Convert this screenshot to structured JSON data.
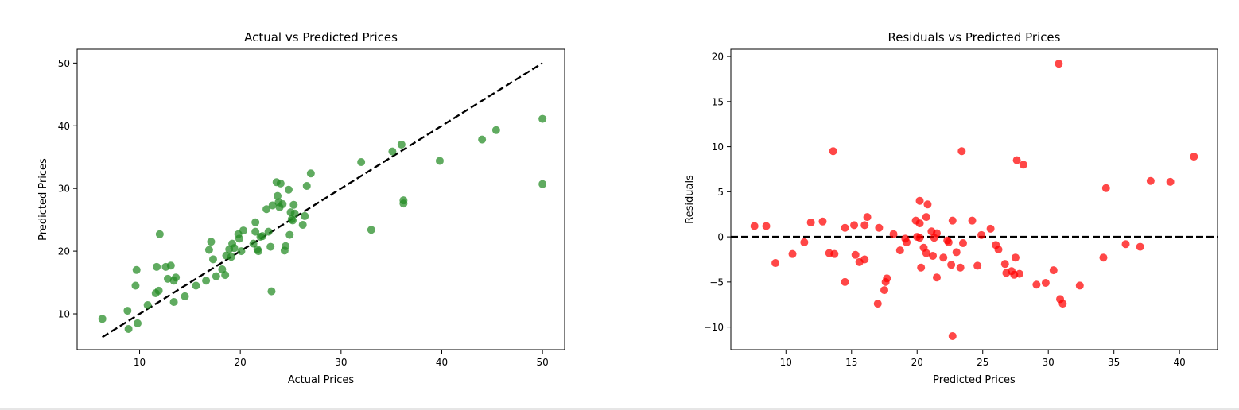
{
  "chart_data": [
    {
      "type": "scatter",
      "title": "Actual vs Predicted Prices",
      "xlabel": "Actual Prices",
      "ylabel": "Predicted Prices",
      "xlim": [
        3.8,
        52.2
      ],
      "ylim": [
        4.3,
        52.2
      ],
      "xticks": [
        10,
        20,
        30,
        40,
        50
      ],
      "yticks": [
        10,
        20,
        30,
        40,
        50
      ],
      "point_color": "#228b22",
      "grid": false,
      "reference_line": {
        "style": "dashed",
        "color": "#000000",
        "from": [
          6.3,
          6.3
        ],
        "to": [
          50,
          50
        ]
      },
      "points": [
        [
          6.3,
          9.2
        ],
        [
          8.8,
          10.5
        ],
        [
          8.9,
          7.6
        ],
        [
          9.6,
          14.5
        ],
        [
          9.7,
          17.0
        ],
        [
          9.8,
          8.5
        ],
        [
          10.8,
          11.4
        ],
        [
          11.6,
          13.3
        ],
        [
          11.7,
          17.5
        ],
        [
          11.9,
          13.7
        ],
        [
          12.0,
          22.7
        ],
        [
          12.6,
          17.5
        ],
        [
          12.8,
          15.6
        ],
        [
          13.1,
          17.7
        ],
        [
          13.4,
          11.9
        ],
        [
          13.4,
          15.3
        ],
        [
          13.6,
          15.8
        ],
        [
          14.5,
          12.8
        ],
        [
          15.6,
          14.5
        ],
        [
          16.6,
          15.3
        ],
        [
          16.9,
          20.2
        ],
        [
          17.1,
          21.5
        ],
        [
          17.3,
          18.7
        ],
        [
          17.6,
          16.0
        ],
        [
          18.2,
          17.1
        ],
        [
          18.5,
          16.2
        ],
        [
          18.6,
          19.3
        ],
        [
          18.9,
          20.3
        ],
        [
          19.2,
          21.2
        ],
        [
          19.1,
          19.1
        ],
        [
          19.4,
          20.5
        ],
        [
          19.8,
          22.7
        ],
        [
          19.9,
          22.0
        ],
        [
          20.1,
          20.0
        ],
        [
          20.3,
          23.3
        ],
        [
          21.3,
          21.2
        ],
        [
          21.5,
          24.6
        ],
        [
          21.5,
          23.1
        ],
        [
          21.7,
          20.3
        ],
        [
          21.8,
          20.0
        ],
        [
          22.0,
          22.3
        ],
        [
          22.2,
          22.4
        ],
        [
          22.6,
          26.7
        ],
        [
          22.8,
          23.1
        ],
        [
          23.0,
          20.7
        ],
        [
          23.1,
          13.6
        ],
        [
          23.2,
          27.3
        ],
        [
          23.6,
          31.0
        ],
        [
          23.7,
          28.8
        ],
        [
          23.8,
          27.8
        ],
        [
          23.9,
          27.0
        ],
        [
          24.0,
          30.8
        ],
        [
          24.2,
          27.5
        ],
        [
          24.4,
          20.1
        ],
        [
          24.5,
          20.8
        ],
        [
          24.8,
          29.8
        ],
        [
          24.9,
          22.6
        ],
        [
          25.0,
          26.2
        ],
        [
          25.1,
          25.1
        ],
        [
          25.2,
          24.9
        ],
        [
          25.3,
          27.4
        ],
        [
          25.4,
          26.0
        ],
        [
          26.2,
          24.2
        ],
        [
          26.4,
          25.6
        ],
        [
          26.6,
          30.4
        ],
        [
          27.0,
          32.4
        ],
        [
          32.0,
          34.2
        ],
        [
          33.0,
          23.4
        ],
        [
          35.1,
          35.9
        ],
        [
          36.0,
          37.0
        ],
        [
          36.2,
          27.6
        ],
        [
          36.2,
          28.1
        ],
        [
          39.8,
          34.4
        ],
        [
          44.0,
          37.8
        ],
        [
          45.4,
          39.3
        ],
        [
          50.0,
          41.1
        ],
        [
          50.0,
          30.7
        ]
      ]
    },
    {
      "type": "scatter",
      "title": "Residuals vs Predicted Prices",
      "xlabel": "Predicted Prices",
      "ylabel": "Residuals",
      "xlim": [
        5.8,
        42.9
      ],
      "ylim": [
        -12.5,
        20.8
      ],
      "xticks": [
        10,
        15,
        20,
        25,
        30,
        35,
        40
      ],
      "yticks": [
        -10,
        -5,
        0,
        5,
        10,
        15,
        20
      ],
      "point_color": "#ff0000",
      "grid": false,
      "reference_line": {
        "style": "dashed",
        "color": "#000000",
        "y": 0
      },
      "points": [
        [
          7.6,
          1.2
        ],
        [
          8.5,
          1.2
        ],
        [
          9.2,
          -2.9
        ],
        [
          10.5,
          -1.9
        ],
        [
          11.4,
          -0.6
        ],
        [
          11.9,
          1.6
        ],
        [
          12.8,
          1.7
        ],
        [
          13.3,
          -1.8
        ],
        [
          13.6,
          9.5
        ],
        [
          13.7,
          -1.9
        ],
        [
          14.5,
          -5.0
        ],
        [
          14.5,
          1.0
        ],
        [
          15.2,
          1.3
        ],
        [
          15.3,
          -2.0
        ],
        [
          15.6,
          -2.8
        ],
        [
          16.0,
          1.3
        ],
        [
          16.0,
          -2.5
        ],
        [
          16.2,
          2.2
        ],
        [
          17.0,
          -7.4
        ],
        [
          17.1,
          1.0
        ],
        [
          17.5,
          -5.9
        ],
        [
          17.6,
          -5.0
        ],
        [
          17.7,
          -4.6
        ],
        [
          18.2,
          0.3
        ],
        [
          18.7,
          -1.5
        ],
        [
          19.1,
          -0.2
        ],
        [
          19.2,
          -0.6
        ],
        [
          19.9,
          1.8
        ],
        [
          20.0,
          0.0
        ],
        [
          20.2,
          -0.1
        ],
        [
          20.2,
          1.5
        ],
        [
          20.2,
          4.0
        ],
        [
          20.3,
          -3.4
        ],
        [
          20.5,
          -1.2
        ],
        [
          20.7,
          -1.8
        ],
        [
          20.7,
          2.2
        ],
        [
          20.8,
          3.6
        ],
        [
          21.1,
          0.6
        ],
        [
          21.2,
          -2.1
        ],
        [
          21.3,
          -0.1
        ],
        [
          21.5,
          -4.5
        ],
        [
          21.5,
          0.4
        ],
        [
          22.0,
          -2.3
        ],
        [
          22.3,
          -0.4
        ],
        [
          22.4,
          -0.6
        ],
        [
          22.6,
          -3.1
        ],
        [
          22.7,
          -11.0
        ],
        [
          22.7,
          1.8
        ],
        [
          23.0,
          -1.7
        ],
        [
          23.3,
          -3.4
        ],
        [
          23.4,
          9.5
        ],
        [
          23.5,
          -0.7
        ],
        [
          24.2,
          1.8
        ],
        [
          24.6,
          -3.2
        ],
        [
          24.9,
          0.2
        ],
        [
          25.6,
          0.9
        ],
        [
          26.0,
          -0.9
        ],
        [
          26.2,
          -1.4
        ],
        [
          26.7,
          -3.0
        ],
        [
          26.8,
          -4.0
        ],
        [
          27.2,
          -3.8
        ],
        [
          27.4,
          -4.2
        ],
        [
          27.5,
          -2.3
        ],
        [
          27.6,
          8.5
        ],
        [
          27.8,
          -4.1
        ],
        [
          28.1,
          8.0
        ],
        [
          29.1,
          -5.3
        ],
        [
          29.8,
          -5.1
        ],
        [
          30.4,
          -3.7
        ],
        [
          30.8,
          19.2
        ],
        [
          30.9,
          -6.9
        ],
        [
          31.1,
          -7.4
        ],
        [
          32.4,
          -5.4
        ],
        [
          34.2,
          -2.3
        ],
        [
          34.4,
          5.4
        ],
        [
          35.9,
          -0.8
        ],
        [
          37.0,
          -1.1
        ],
        [
          37.8,
          6.2
        ],
        [
          39.3,
          6.1
        ],
        [
          41.1,
          8.9
        ]
      ]
    }
  ]
}
